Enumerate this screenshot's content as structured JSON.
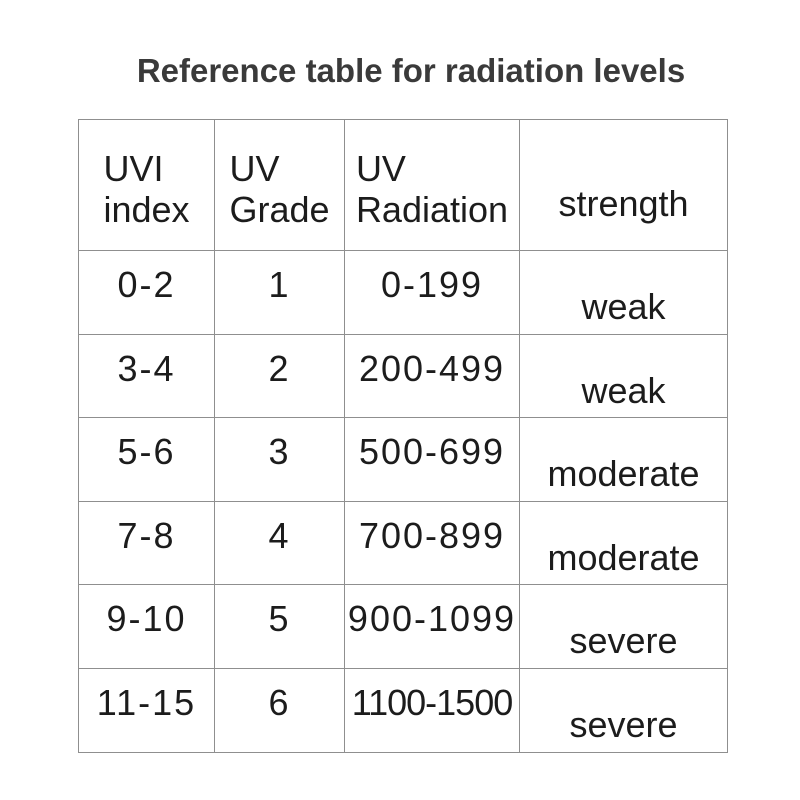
{
  "title": "Reference table for radiation levels",
  "colors": {
    "background": "#ffffff",
    "title_text": "#3a3a3a",
    "cell_text": "#1c1c1c",
    "grid_line": "#8f8f8f"
  },
  "chart_data": {
    "type": "table",
    "title": "Reference table for radiation levels",
    "columns": [
      "UVI\nindex",
      "UV\nGrade",
      "UV\nRadiation",
      "strength"
    ],
    "rows": [
      [
        "0-2",
        "1",
        "0-199",
        "weak"
      ],
      [
        "3-4",
        "2",
        "200-499",
        "weak"
      ],
      [
        "5-6",
        "3",
        "500-699",
        "moderate"
      ],
      [
        "7-8",
        "4",
        "700-899",
        "moderate"
      ],
      [
        "9-10",
        "5",
        "900-1099",
        "severe"
      ],
      [
        "11-15",
        "6",
        "1100-1500",
        "severe"
      ]
    ],
    "layout": {
      "grid": "on",
      "header_row": true,
      "uvi_index_range": [
        0,
        15
      ],
      "uv_grade_range": [
        1,
        6
      ],
      "uv_radiation_range": [
        0,
        1500
      ]
    }
  }
}
